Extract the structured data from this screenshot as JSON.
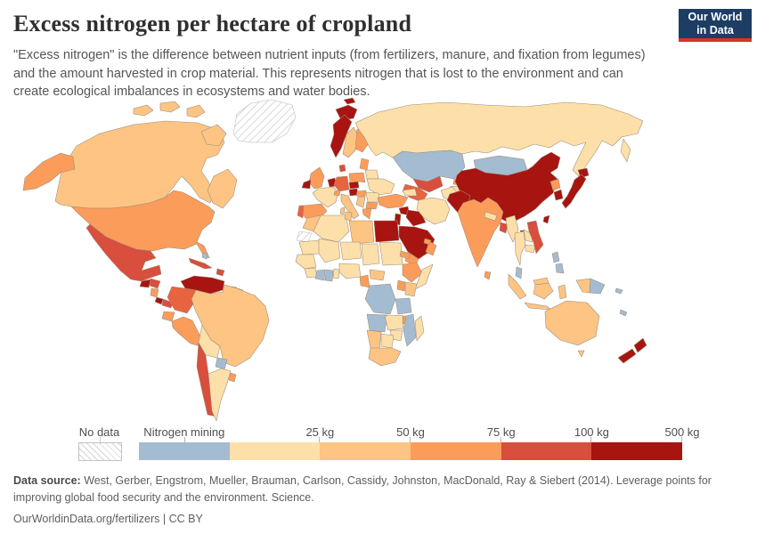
{
  "header": {
    "title": "Excess nitrogen per hectare of cropland",
    "subtitle_lines": [
      "\"Excess nitrogen\" is the difference between nutrient inputs (from fertilizers, manure, and fixation from legumes)",
      "and the amount harvested in crop material. This represents nitrogen that is lost to the environment and can",
      "create ecological imbalances in ecosystems and water bodies."
    ],
    "logo": {
      "line1": "Our World",
      "line2": "in Data",
      "bg": "#1d3d63",
      "accent": "#dc3226"
    }
  },
  "legend": {
    "no_data_label": "No data",
    "items": [
      {
        "label": "Nitrogen mining",
        "color": "#a4bcd2"
      },
      {
        "label": "25 kg",
        "color": "#fddfa9"
      },
      {
        "label": "50 kg",
        "color": "#fdc484"
      },
      {
        "label": "75 kg",
        "color": "#fc9c5a"
      },
      {
        "label": "100 kg",
        "color": "#d94e3c"
      },
      {
        "label": "500 kg",
        "color": "#a81410"
      }
    ]
  },
  "footer": {
    "data_source_label": "Data source:",
    "data_source_text": " West, Gerber, Engstrom, Mueller, Brauman, Carlson, Cassidy, Johnston, MacDonald, Ray & Siebert (2014). Leverage points for improving global food security and the environment. Science.",
    "link_text": "OurWorldinData.org/fertilizers | CC BY"
  },
  "chart_data": {
    "type": "heatmap",
    "subtype": "world-choropleth",
    "title": "Excess nitrogen per hectare of cropland",
    "unit": "kg",
    "legend_position": "bottom",
    "no_data": {
      "label": "No data",
      "regions": [
        "greenland",
        "western-sahara"
      ]
    },
    "legend_buckets": [
      {
        "label": "Nitrogen mining",
        "color": "#a4bcd2"
      },
      {
        "label": "25 kg",
        "color": "#fddfa9"
      },
      {
        "label": "50 kg",
        "color": "#fdc484"
      },
      {
        "label": "75 kg",
        "color": "#fc9c5a"
      },
      {
        "label": "100 kg",
        "color": "#d94e3c"
      },
      {
        "label": "500 kg",
        "color": "#a81410"
      }
    ],
    "regions": {
      "greenland": {
        "name": "Greenland",
        "color": "no-data"
      },
      "western-sahara": {
        "name": "Western Sahara",
        "color": "no-data"
      },
      "canada": {
        "name": "Canada",
        "color": "#fdc484"
      },
      "usa": {
        "name": "United States",
        "color": "#fc9c5a"
      },
      "mexico": {
        "name": "Mexico",
        "color": "#d94e3c"
      },
      "guatemala": {
        "name": "Guatemala",
        "color": "#a81410"
      },
      "honduras": {
        "name": "Honduras",
        "color": "#d94e3c"
      },
      "nicaragua": {
        "name": "Nicaragua",
        "color": "#fc9c5a"
      },
      "costa-rica": {
        "name": "Costa Rica",
        "color": "#a81410"
      },
      "panama": {
        "name": "Panama",
        "color": "#d94e3c"
      },
      "cuba": {
        "name": "Cuba",
        "color": "#d94e3c"
      },
      "hispaniola": {
        "name": "Dominican Republic & Haiti",
        "color": "#d94e3c"
      },
      "bahamas": {
        "name": "Bahamas",
        "color": "#a4bcd2"
      },
      "venezuela": {
        "name": "Venezuela",
        "color": "#a81410"
      },
      "colombia": {
        "name": "Colombia",
        "color": "#e8633f"
      },
      "ecuador": {
        "name": "Ecuador",
        "color": "#fc9c5a"
      },
      "peru": {
        "name": "Peru",
        "color": "#fc9c5a"
      },
      "guyana": {
        "name": "Guyana",
        "color": "#fddfa9"
      },
      "suriname": {
        "name": "Suriname",
        "color": "#fc9c5a"
      },
      "french-guiana": {
        "name": "French Guiana",
        "color": "#fddfa9"
      },
      "brazil": {
        "name": "Brazil",
        "color": "#fdc484"
      },
      "bolivia": {
        "name": "Bolivia",
        "color": "#fddfa9"
      },
      "paraguay": {
        "name": "Paraguay",
        "color": "#a4bcd2"
      },
      "chile": {
        "name": "Chile",
        "color": "#d94e3c"
      },
      "argentina": {
        "name": "Argentina",
        "color": "#fddfa9"
      },
      "uruguay": {
        "name": "Uruguay",
        "color": "#fc9c5a"
      },
      "iceland": {
        "name": "Iceland",
        "color": "#a81410"
      },
      "svalbard": {
        "name": "Svalbard",
        "color": "#a81410"
      },
      "norway": {
        "name": "Norway",
        "color": "#a81410"
      },
      "sweden": {
        "name": "Sweden",
        "color": "#fdc484"
      },
      "finland": {
        "name": "Finland",
        "color": "#fc9c5a"
      },
      "baltics": {
        "name": "Baltic states",
        "color": "#fc9c5a"
      },
      "denmark": {
        "name": "Denmark",
        "color": "#d94e3c"
      },
      "uk": {
        "name": "United Kingdom",
        "color": "#fc9c5a"
      },
      "ireland": {
        "name": "Ireland",
        "color": "#a81410"
      },
      "benelux": {
        "name": "Netherlands & Belgium",
        "color": "#a81410"
      },
      "germany": {
        "name": "Germany",
        "color": "#e8633f"
      },
      "france": {
        "name": "France",
        "color": "#fddfa9"
      },
      "spain": {
        "name": "Spain",
        "color": "#fc9c5a"
      },
      "portugal": {
        "name": "Portugal",
        "color": "#e8633f"
      },
      "italy": {
        "name": "Italy",
        "color": "#fdc484"
      },
      "switzerland": {
        "name": "Switzerland",
        "color": "#fc9c5a"
      },
      "czech": {
        "name": "Czechia",
        "color": "#a81410"
      },
      "austria": {
        "name": "Austria",
        "color": "#a81410"
      },
      "poland": {
        "name": "Poland",
        "color": "#fc9c5a"
      },
      "belarus": {
        "name": "Belarus",
        "color": "#fddfa9"
      },
      "ukraine": {
        "name": "Ukraine",
        "color": "#fddfa9"
      },
      "hungary": {
        "name": "Hungary",
        "color": "#fc9c5a"
      },
      "romania": {
        "name": "Romania",
        "color": "#fddfa9"
      },
      "balkans": {
        "name": "Western Balkans",
        "color": "#fdc484"
      },
      "bulgaria": {
        "name": "Bulgaria",
        "color": "#fc9c5a"
      },
      "greece": {
        "name": "Greece",
        "color": "#fc9c5a"
      },
      "russia": {
        "name": "Russia",
        "color": "#fddfa9"
      },
      "kazakhstan": {
        "name": "Kazakhstan",
        "color": "#a4bcd2"
      },
      "uzbekistan": {
        "name": "Uzbekistan",
        "color": "#d94e3c"
      },
      "turkmenistan": {
        "name": "Turkmenistan",
        "color": "#e8633f"
      },
      "kyrgyzstan": {
        "name": "Kyrgyzstan",
        "color": "#fc9c5a"
      },
      "tajikistan": {
        "name": "Tajikistan",
        "color": "#fddfa9"
      },
      "mongolia": {
        "name": "Mongolia",
        "color": "#a4bcd2"
      },
      "china": {
        "name": "China",
        "color": "#a81410"
      },
      "north-korea": {
        "name": "North Korea",
        "color": "#fc9c5a"
      },
      "south-korea": {
        "name": "South Korea",
        "color": "#a81410"
      },
      "japan": {
        "name": "Japan",
        "color": "#a81410"
      },
      "taiwan": {
        "name": "Taiwan",
        "color": "#a81410"
      },
      "turkey": {
        "name": "Turkey",
        "color": "#fc9c5a"
      },
      "caucasus": {
        "name": "Caucasus",
        "color": "#fddfa9"
      },
      "syria": {
        "name": "Syria",
        "color": "#a81410"
      },
      "iraq": {
        "name": "Iraq",
        "color": "#a81410"
      },
      "levant": {
        "name": "Jordan & Israel",
        "color": "#a81410"
      },
      "saudi-arabia": {
        "name": "Saudi Arabia",
        "color": "#a81410"
      },
      "yemen": {
        "name": "Yemen",
        "color": "#fc9c5a"
      },
      "oman": {
        "name": "Oman",
        "color": "#fc9c5a"
      },
      "uae-qatar": {
        "name": "UAE & Qatar",
        "color": "#fc9c5a"
      },
      "iran": {
        "name": "Iran",
        "color": "#fddfa9"
      },
      "afghanistan": {
        "name": "Afghanistan",
        "color": "#fddfa9"
      },
      "pakistan": {
        "name": "Pakistan",
        "color": "#a81410"
      },
      "india": {
        "name": "India",
        "color": "#fc9c5a"
      },
      "nepal": {
        "name": "Nepal",
        "color": "#fddfa9"
      },
      "bangladesh": {
        "name": "Bangladesh",
        "color": "#d94e3c"
      },
      "sri-lanka": {
        "name": "Sri Lanka",
        "color": "#fc9c5a"
      },
      "myanmar": {
        "name": "Myanmar",
        "color": "#fddfa9"
      },
      "thailand": {
        "name": "Thailand",
        "color": "#fddfa9"
      },
      "laos": {
        "name": "Laos",
        "color": "#fddfa9"
      },
      "cambodia": {
        "name": "Cambodia",
        "color": "#fddfa9"
      },
      "vietnam": {
        "name": "Vietnam",
        "color": "#d94e3c"
      },
      "malaysia": {
        "name": "Malaysia (peninsula)",
        "color": "#a4bcd2"
      },
      "borneo-malaysia": {
        "name": "Malaysia (Borneo)",
        "color": "#fdc484"
      },
      "indonesia": {
        "name": "Indonesia",
        "color": "#fdc484"
      },
      "philippines": {
        "name": "Philippines",
        "color": "#a4bcd2"
      },
      "papua-new-guinea": {
        "name": "Papua New Guinea",
        "color": "#a4bcd2"
      },
      "solomon": {
        "name": "Solomon Islands",
        "color": "#a4bcd2"
      },
      "new-caledonia": {
        "name": "New Caledonia",
        "color": "#a4bcd2"
      },
      "morocco": {
        "name": "Morocco",
        "color": "#fdc484"
      },
      "algeria": {
        "name": "Algeria",
        "color": "#fddfa9"
      },
      "tunisia": {
        "name": "Tunisia",
        "color": "#fdc484"
      },
      "libya": {
        "name": "Libya",
        "color": "#fdc484"
      },
      "egypt": {
        "name": "Egypt",
        "color": "#a81410"
      },
      "mauritania": {
        "name": "Mauritania",
        "color": "#fddfa9"
      },
      "mali": {
        "name": "Mali",
        "color": "#fddfa9"
      },
      "niger": {
        "name": "Niger",
        "color": "#fddfa9"
      },
      "chad": {
        "name": "Chad",
        "color": "#fddfa9"
      },
      "sudan": {
        "name": "Sudan",
        "color": "#fddfa9"
      },
      "eritrea": {
        "name": "Eritrea",
        "color": "#fc9c5a"
      },
      "senegal-region": {
        "name": "Senegal region",
        "color": "#fddfa9"
      },
      "guinea-region": {
        "name": "Guinea region",
        "color": "#fddfa9"
      },
      "cote-divoire": {
        "name": "Cote d'Ivoire",
        "color": "#a4bcd2"
      },
      "ghana": {
        "name": "Ghana",
        "color": "#a4bcd2"
      },
      "togo-benin": {
        "name": "Togo & Benin",
        "color": "#fddfa9"
      },
      "nigeria": {
        "name": "Nigeria",
        "color": "#fddfa9"
      },
      "cameroon": {
        "name": "Cameroon",
        "color": "#fc9c5a"
      },
      "central-african-republic": {
        "name": "Central African Republic",
        "color": "#fdc484"
      },
      "ethiopia": {
        "name": "Ethiopia",
        "color": "#fc9c5a"
      },
      "somalia": {
        "name": "Somalia",
        "color": "#fddfa9"
      },
      "kenya": {
        "name": "Kenya",
        "color": "#fdc484"
      },
      "uganda": {
        "name": "Uganda",
        "color": "#fc9c5a"
      },
      "drc": {
        "name": "Democratic Republic of Congo",
        "color": "#a4bcd2"
      },
      "angola": {
        "name": "Angola",
        "color": "#a4bcd2"
      },
      "tanzania": {
        "name": "Tanzania",
        "color": "#a4bcd2"
      },
      "zambia": {
        "name": "Zambia",
        "color": "#fddfa9"
      },
      "malawi": {
        "name": "Malawi",
        "color": "#fc9c5a"
      },
      "mozambique": {
        "name": "Mozambique",
        "color": "#a4bcd2"
      },
      "zimbabwe": {
        "name": "Zimbabwe",
        "color": "#fddfa9"
      },
      "botswana": {
        "name": "Botswana",
        "color": "#fddfa9"
      },
      "namibia": {
        "name": "Namibia",
        "color": "#fdc484"
      },
      "south-africa": {
        "name": "South Africa",
        "color": "#fdc484"
      },
      "madagascar": {
        "name": "Madagascar",
        "color": "#fddfa9"
      },
      "australia": {
        "name": "Australia",
        "color": "#fdc484"
      },
      "new-zealand": {
        "name": "New Zealand",
        "color": "#a81410"
      }
    }
  }
}
